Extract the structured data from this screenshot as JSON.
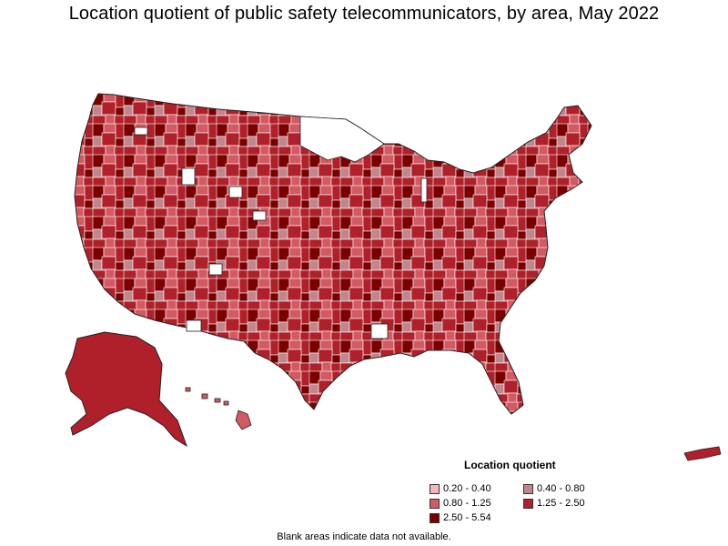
{
  "title": "Location quotient of public safety telecommunicators, by area, May 2022",
  "legend": {
    "title": "Location quotient",
    "items": [
      {
        "label": "0.20 - 0.40",
        "color": "#f4b6bc"
      },
      {
        "label": "0.40 - 0.80",
        "color": "#c0868c"
      },
      {
        "label": "0.80 - 1.25",
        "color": "#d25a62"
      },
      {
        "label": "1.25 - 2.50",
        "color": "#b0202a"
      },
      {
        "label": "2.50 - 5.54",
        "color": "#7a0000"
      }
    ]
  },
  "note": "Blank areas indicate data not available."
}
